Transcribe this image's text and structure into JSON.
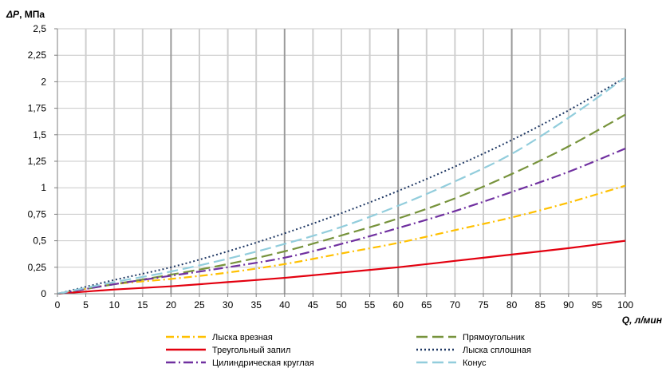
{
  "chart_data": {
    "type": "line",
    "ylabel_prefix": "ΔP",
    "ylabel_suffix": ", МПа",
    "xlabel_prefix": "Q",
    "xlabel_suffix": ", л/мин",
    "xlim": [
      0,
      100
    ],
    "ylim": [
      0,
      2.5
    ],
    "x_ticks": [
      0,
      5,
      10,
      15,
      20,
      25,
      30,
      35,
      40,
      45,
      50,
      55,
      60,
      65,
      70,
      75,
      80,
      85,
      90,
      95,
      100
    ],
    "y_ticks": [
      0,
      0.25,
      0.5,
      0.75,
      1,
      1.25,
      1.5,
      1.75,
      2,
      2.25,
      2.5
    ],
    "y_tick_labels": [
      "0",
      "0,25",
      "0,5",
      "0,75",
      "1",
      "1,25",
      "1,5",
      "1,75",
      "2",
      "2,25",
      "2,5"
    ],
    "grid": true,
    "x": [
      0,
      10,
      20,
      30,
      40,
      50,
      60,
      70,
      80,
      90,
      100
    ],
    "series": [
      {
        "name": "Лыска врезная",
        "color": "#FFC000",
        "dash": "10 4 2 4",
        "values": [
          0,
          0.09,
          0.14,
          0.2,
          0.28,
          0.38,
          0.48,
          0.6,
          0.72,
          0.86,
          1.02
        ]
      },
      {
        "name": "Прямоугольник",
        "color": "#77933C",
        "dash": "14 6",
        "values": [
          0,
          0.09,
          0.18,
          0.28,
          0.4,
          0.55,
          0.71,
          0.9,
          1.13,
          1.39,
          1.69
        ]
      },
      {
        "name": "Треугольный запил",
        "color": "#E3000F",
        "dash": "",
        "values": [
          0,
          0.04,
          0.07,
          0.11,
          0.15,
          0.2,
          0.25,
          0.31,
          0.37,
          0.43,
          0.5
        ]
      },
      {
        "name": "Лыска сплошная",
        "color": "#1F3864",
        "dash": "2 3",
        "values": [
          0,
          0.13,
          0.25,
          0.4,
          0.57,
          0.76,
          0.97,
          1.2,
          1.45,
          1.73,
          2.04
        ]
      },
      {
        "name": "Цилиндрическая круглая",
        "color": "#7030A0",
        "dash": "12 4 2 4",
        "values": [
          0,
          0.09,
          0.17,
          0.25,
          0.34,
          0.47,
          0.62,
          0.78,
          0.96,
          1.15,
          1.37
        ]
      },
      {
        "name": "Конус",
        "color": "#92CDDC",
        "dash": "14 6",
        "values": [
          0,
          0.11,
          0.21,
          0.33,
          0.47,
          0.63,
          0.83,
          1.06,
          1.32,
          1.66,
          2.04
        ]
      }
    ]
  }
}
